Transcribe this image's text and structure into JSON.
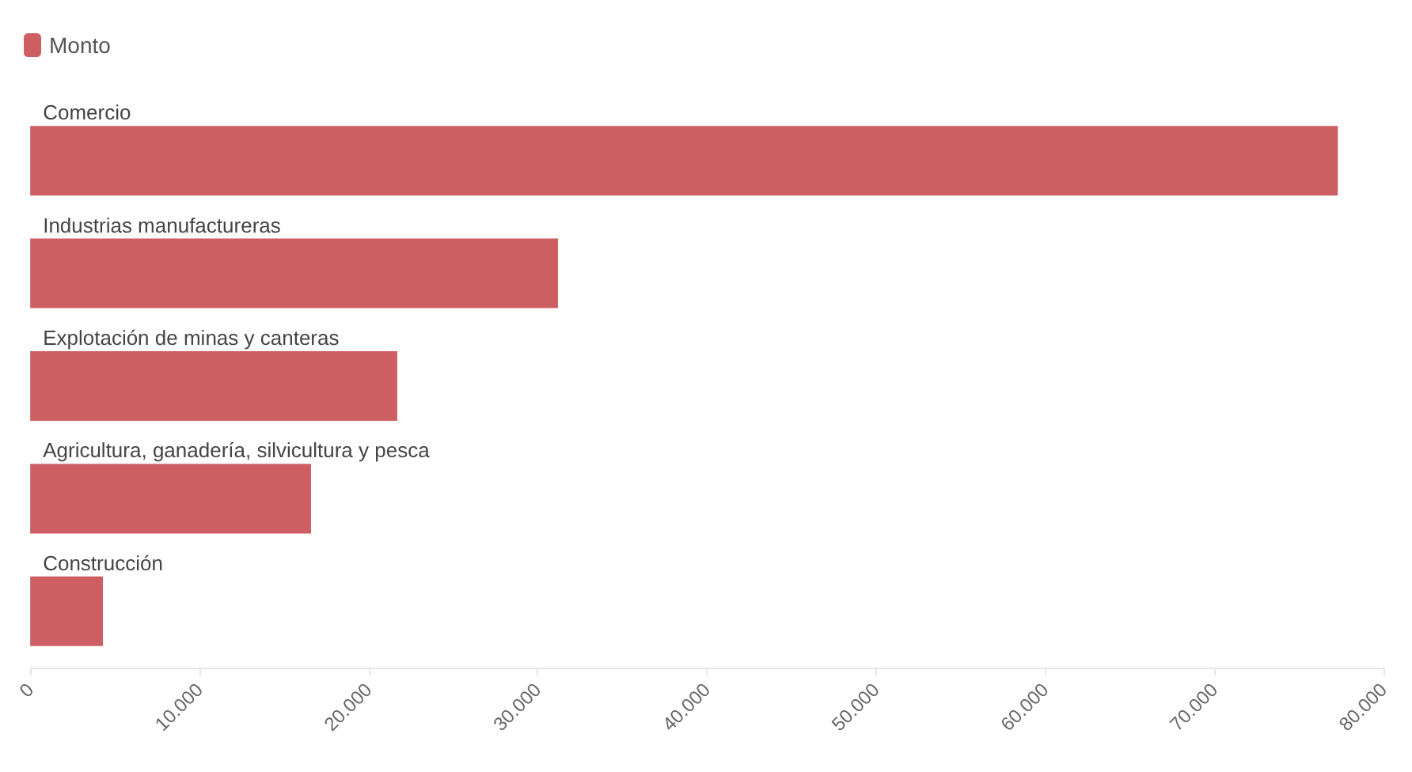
{
  "chart_data": {
    "type": "bar",
    "orientation": "horizontal",
    "categories": [
      "Comercio",
      "Industrias manufactureras",
      "Explotación de minas y canteras",
      "Agricultura, ganadería, silvicultura y pesca",
      "Construcción"
    ],
    "series": [
      {
        "name": "Monto",
        "color": "#cd5f63",
        "values": [
          77300,
          31200,
          21700,
          16600,
          4300
        ]
      }
    ],
    "xlim": [
      0,
      80000
    ],
    "xticks": [
      0,
      {
        "value": 10000,
        "label": "10.000"
      },
      {
        "value": 20000,
        "label": "20.000"
      },
      {
        "value": 30000,
        "label": "30.000"
      },
      {
        "value": 40000,
        "label": "40.000"
      },
      {
        "value": 50000,
        "label": "50.000"
      },
      {
        "value": 60000,
        "label": "60.000"
      },
      {
        "value": 70000,
        "label": "70.000"
      },
      {
        "value": 80000,
        "label": "80.000"
      }
    ],
    "grid": false,
    "legend": "top left"
  }
}
